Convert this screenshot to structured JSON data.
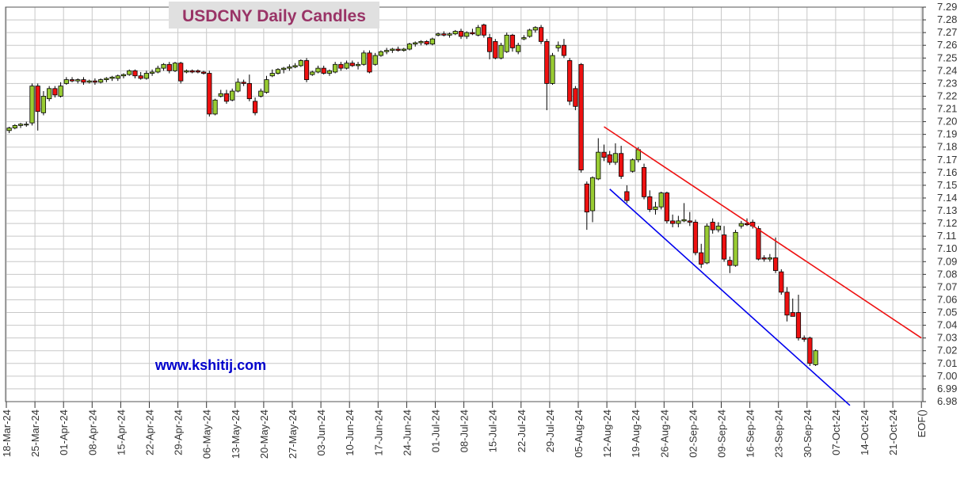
{
  "chart_data": {
    "type": "candlestick",
    "title": "USDCNY Daily Candles",
    "watermark": "www.kshitij.com",
    "ylim": [
      6.98,
      7.29
    ],
    "y_ticks": [
      6.98,
      6.99,
      7.0,
      7.01,
      7.02,
      7.03,
      7.04,
      7.05,
      7.06,
      7.07,
      7.08,
      7.09,
      7.1,
      7.11,
      7.12,
      7.13,
      7.14,
      7.15,
      7.16,
      7.17,
      7.18,
      7.19,
      7.2,
      7.21,
      7.22,
      7.23,
      7.24,
      7.25,
      7.26,
      7.27,
      7.28,
      7.29
    ],
    "x_ticks": [
      "18-Mar-24",
      "25-Mar-24",
      "01-Apr-24",
      "08-Apr-24",
      "15-Apr-24",
      "22-Apr-24",
      "29-Apr-24",
      "06-May-24",
      "13-May-24",
      "20-May-24",
      "27-May-24",
      "03-Jun-24",
      "10-Jun-24",
      "17-Jun-24",
      "24-Jun-24",
      "01-Jul-24",
      "08-Jul-24",
      "15-Jul-24",
      "22-Jul-24",
      "29-Jul-24",
      "05-Aug-24",
      "12-Aug-24",
      "19-Aug-24",
      "26-Aug-24",
      "02-Sep-24",
      "09-Sep-24",
      "16-Sep-24",
      "23-Sep-24",
      "30-Sep-24",
      "07-Oct-24",
      "14-Oct-24",
      "21-Oct-24",
      "EOF()"
    ],
    "colors": {
      "up": "#99cc33",
      "down": "#ee1111",
      "grid": "#c8c8c8",
      "title": "#993366",
      "title_bg": "#e0e0e0",
      "watermark": "#0000cc",
      "upper_trendline": "#ee1111",
      "lower_trendline": "#0000ee"
    },
    "candles": [
      {
        "date": "18-Mar-24",
        "o": 7.193,
        "h": 7.196,
        "l": 7.191,
        "c": 7.195
      },
      {
        "date": "19-Mar-24",
        "o": 7.195,
        "h": 7.198,
        "l": 7.194,
        "c": 7.197
      },
      {
        "date": "20-Mar-24",
        "o": 7.197,
        "h": 7.199,
        "l": 7.195,
        "c": 7.198
      },
      {
        "date": "21-Mar-24",
        "o": 7.198,
        "h": 7.2,
        "l": 7.196,
        "c": 7.198
      },
      {
        "date": "22-Mar-24",
        "o": 7.199,
        "h": 7.23,
        "l": 7.197,
        "c": 7.228
      },
      {
        "date": "25-Mar-24",
        "o": 7.228,
        "h": 7.23,
        "l": 7.193,
        "c": 7.208
      },
      {
        "date": "26-Mar-24",
        "o": 7.207,
        "h": 7.224,
        "l": 7.205,
        "c": 7.22
      },
      {
        "date": "27-Mar-24",
        "o": 7.218,
        "h": 7.228,
        "l": 7.216,
        "c": 7.226
      },
      {
        "date": "28-Mar-24",
        "o": 7.226,
        "h": 7.228,
        "l": 7.219,
        "c": 7.221
      },
      {
        "date": "29-Mar-24",
        "o": 7.22,
        "h": 7.231,
        "l": 7.219,
        "c": 7.228
      },
      {
        "date": "01-Apr-24",
        "o": 7.23,
        "h": 7.235,
        "l": 7.229,
        "c": 7.233
      },
      {
        "date": "02-Apr-24",
        "o": 7.233,
        "h": 7.235,
        "l": 7.231,
        "c": 7.232
      },
      {
        "date": "03-Apr-24",
        "o": 7.232,
        "h": 7.234,
        "l": 7.23,
        "c": 7.233
      },
      {
        "date": "04-Apr-24",
        "o": 7.233,
        "h": 7.235,
        "l": 7.229,
        "c": 7.231
      },
      {
        "date": "05-Apr-24",
        "o": 7.231,
        "h": 7.233,
        "l": 7.23,
        "c": 7.232
      },
      {
        "date": "08-Apr-24",
        "o": 7.232,
        "h": 7.234,
        "l": 7.229,
        "c": 7.231
      },
      {
        "date": "09-Apr-24",
        "o": 7.231,
        "h": 7.234,
        "l": 7.23,
        "c": 7.233
      },
      {
        "date": "10-Apr-24",
        "o": 7.233,
        "h": 7.235,
        "l": 7.231,
        "c": 7.234
      },
      {
        "date": "11-Apr-24",
        "o": 7.234,
        "h": 7.236,
        "l": 7.232,
        "c": 7.235
      },
      {
        "date": "12-Apr-24",
        "o": 7.234,
        "h": 7.237,
        "l": 7.232,
        "c": 7.236
      },
      {
        "date": "15-Apr-24",
        "o": 7.236,
        "h": 7.238,
        "l": 7.234,
        "c": 7.237
      },
      {
        "date": "16-Apr-24",
        "o": 7.237,
        "h": 7.241,
        "l": 7.236,
        "c": 7.24
      },
      {
        "date": "17-Apr-24",
        "o": 7.24,
        "h": 7.241,
        "l": 7.234,
        "c": 7.236
      },
      {
        "date": "18-Apr-24",
        "o": 7.236,
        "h": 7.239,
        "l": 7.233,
        "c": 7.234
      },
      {
        "date": "19-Apr-24",
        "o": 7.234,
        "h": 7.24,
        "l": 7.233,
        "c": 7.238
      },
      {
        "date": "22-Apr-24",
        "o": 7.238,
        "h": 7.241,
        "l": 7.236,
        "c": 7.239
      },
      {
        "date": "23-Apr-24",
        "o": 7.239,
        "h": 7.244,
        "l": 7.238,
        "c": 7.242
      },
      {
        "date": "24-Apr-24",
        "o": 7.242,
        "h": 7.246,
        "l": 7.24,
        "c": 7.245
      },
      {
        "date": "25-Apr-24",
        "o": 7.245,
        "h": 7.247,
        "l": 7.238,
        "c": 7.24
      },
      {
        "date": "26-Apr-24",
        "o": 7.24,
        "h": 7.247,
        "l": 7.239,
        "c": 7.246
      },
      {
        "date": "29-Apr-24",
        "o": 7.246,
        "h": 7.247,
        "l": 7.23,
        "c": 7.232
      },
      {
        "date": "30-Apr-24",
        "o": 7.239,
        "h": 7.241,
        "l": 7.238,
        "c": 7.24
      },
      {
        "date": "01-May-24",
        "o": 7.24,
        "h": 7.241,
        "l": 7.238,
        "c": 7.239
      },
      {
        "date": "02-May-24",
        "o": 7.24,
        "h": 7.241,
        "l": 7.238,
        "c": 7.239
      },
      {
        "date": "03-May-24",
        "o": 7.239,
        "h": 7.24,
        "l": 7.237,
        "c": 7.238
      },
      {
        "date": "06-May-24",
        "o": 7.238,
        "h": 7.24,
        "l": 7.204,
        "c": 7.206
      },
      {
        "date": "07-May-24",
        "o": 7.206,
        "h": 7.218,
        "l": 7.205,
        "c": 7.217
      },
      {
        "date": "08-May-24",
        "o": 7.22,
        "h": 7.225,
        "l": 7.219,
        "c": 7.222
      },
      {
        "date": "09-May-24",
        "o": 7.222,
        "h": 7.225,
        "l": 7.214,
        "c": 7.216
      },
      {
        "date": "10-May-24",
        "o": 7.217,
        "h": 7.226,
        "l": 7.216,
        "c": 7.224
      },
      {
        "date": "13-May-24",
        "o": 7.224,
        "h": 7.234,
        "l": 7.223,
        "c": 7.231
      },
      {
        "date": "14-May-24",
        "o": 7.231,
        "h": 7.233,
        "l": 7.228,
        "c": 7.23
      },
      {
        "date": "15-May-24",
        "o": 7.23,
        "h": 7.237,
        "l": 7.216,
        "c": 7.218
      },
      {
        "date": "16-May-24",
        "o": 7.216,
        "h": 7.219,
        "l": 7.205,
        "c": 7.207
      },
      {
        "date": "17-May-24",
        "o": 7.22,
        "h": 7.226,
        "l": 7.219,
        "c": 7.224
      },
      {
        "date": "20-May-24",
        "o": 7.223,
        "h": 7.236,
        "l": 7.222,
        "c": 7.233
      },
      {
        "date": "21-May-24",
        "o": 7.236,
        "h": 7.241,
        "l": 7.235,
        "c": 7.238
      },
      {
        "date": "22-May-24",
        "o": 7.238,
        "h": 7.242,
        "l": 7.237,
        "c": 7.241
      },
      {
        "date": "23-May-24",
        "o": 7.241,
        "h": 7.243,
        "l": 7.238,
        "c": 7.242
      },
      {
        "date": "24-May-24",
        "o": 7.242,
        "h": 7.245,
        "l": 7.24,
        "c": 7.243
      },
      {
        "date": "27-May-24",
        "o": 7.243,
        "h": 7.246,
        "l": 7.242,
        "c": 7.244
      },
      {
        "date": "28-May-24",
        "o": 7.244,
        "h": 7.249,
        "l": 7.243,
        "c": 7.248
      },
      {
        "date": "29-May-24",
        "o": 7.248,
        "h": 7.25,
        "l": 7.231,
        "c": 7.233
      },
      {
        "date": "30-May-24",
        "o": 7.237,
        "h": 7.24,
        "l": 7.236,
        "c": 7.239
      },
      {
        "date": "31-May-24",
        "o": 7.239,
        "h": 7.244,
        "l": 7.238,
        "c": 7.242
      },
      {
        "date": "03-Jun-24",
        "o": 7.242,
        "h": 7.244,
        "l": 7.237,
        "c": 7.238
      },
      {
        "date": "04-Jun-24",
        "o": 7.238,
        "h": 7.241,
        "l": 7.236,
        "c": 7.24
      },
      {
        "date": "05-Jun-24",
        "o": 7.239,
        "h": 7.247,
        "l": 7.238,
        "c": 7.245
      },
      {
        "date": "06-Jun-24",
        "o": 7.245,
        "h": 7.247,
        "l": 7.24,
        "c": 7.242
      },
      {
        "date": "07-Jun-24",
        "o": 7.242,
        "h": 7.248,
        "l": 7.241,
        "c": 7.246
      },
      {
        "date": "10-Jun-24",
        "o": 7.246,
        "h": 7.248,
        "l": 7.243,
        "c": 7.244
      },
      {
        "date": "11-Jun-24",
        "o": 7.244,
        "h": 7.247,
        "l": 7.241,
        "c": 7.245
      },
      {
        "date": "12-Jun-24",
        "o": 7.245,
        "h": 7.256,
        "l": 7.244,
        "c": 7.254
      },
      {
        "date": "13-Jun-24",
        "o": 7.254,
        "h": 7.256,
        "l": 7.238,
        "c": 7.239
      },
      {
        "date": "14-Jun-24",
        "o": 7.245,
        "h": 7.254,
        "l": 7.244,
        "c": 7.252
      },
      {
        "date": "17-Jun-24",
        "o": 7.252,
        "h": 7.256,
        "l": 7.251,
        "c": 7.255
      },
      {
        "date": "18-Jun-24",
        "o": 7.255,
        "h": 7.258,
        "l": 7.253,
        "c": 7.256
      },
      {
        "date": "19-Jun-24",
        "o": 7.256,
        "h": 7.258,
        "l": 7.254,
        "c": 7.257
      },
      {
        "date": "20-Jun-24",
        "o": 7.257,
        "h": 7.259,
        "l": 7.255,
        "c": 7.256
      },
      {
        "date": "21-Jun-24",
        "o": 7.256,
        "h": 7.258,
        "l": 7.255,
        "c": 7.257
      },
      {
        "date": "24-Jun-24",
        "o": 7.257,
        "h": 7.262,
        "l": 7.256,
        "c": 7.261
      },
      {
        "date": "25-Jun-24",
        "o": 7.261,
        "h": 7.263,
        "l": 7.259,
        "c": 7.262
      },
      {
        "date": "26-Jun-24",
        "o": 7.262,
        "h": 7.264,
        "l": 7.26,
        "c": 7.263
      },
      {
        "date": "27-Jun-24",
        "o": 7.263,
        "h": 7.264,
        "l": 7.26,
        "c": 7.261
      },
      {
        "date": "28-Jun-24",
        "o": 7.261,
        "h": 7.266,
        "l": 7.26,
        "c": 7.265
      },
      {
        "date": "01-Jul-24",
        "o": 7.268,
        "h": 7.27,
        "l": 7.267,
        "c": 7.269
      },
      {
        "date": "02-Jul-24",
        "o": 7.269,
        "h": 7.271,
        "l": 7.267,
        "c": 7.268
      },
      {
        "date": "03-Jul-24",
        "o": 7.268,
        "h": 7.27,
        "l": 7.266,
        "c": 7.269
      },
      {
        "date": "04-Jul-24",
        "o": 7.269,
        "h": 7.272,
        "l": 7.268,
        "c": 7.271
      },
      {
        "date": "05-Jul-24",
        "o": 7.271,
        "h": 7.273,
        "l": 7.265,
        "c": 7.267
      },
      {
        "date": "08-Jul-24",
        "o": 7.267,
        "h": 7.271,
        "l": 7.265,
        "c": 7.27
      },
      {
        "date": "09-Jul-24",
        "o": 7.27,
        "h": 7.273,
        "l": 7.268,
        "c": 7.269
      },
      {
        "date": "10-Jul-24",
        "o": 7.268,
        "h": 7.276,
        "l": 7.267,
        "c": 7.274
      },
      {
        "date": "11-Jul-24",
        "o": 7.276,
        "h": 7.277,
        "l": 7.266,
        "c": 7.268
      },
      {
        "date": "12-Jul-24",
        "o": 7.266,
        "h": 7.269,
        "l": 7.249,
        "c": 7.255
      },
      {
        "date": "15-Jul-24",
        "o": 7.263,
        "h": 7.265,
        "l": 7.249,
        "c": 7.25
      },
      {
        "date": "16-Jul-24",
        "o": 7.25,
        "h": 7.262,
        "l": 7.249,
        "c": 7.26
      },
      {
        "date": "17-Jul-24",
        "o": 7.255,
        "h": 7.27,
        "l": 7.254,
        "c": 7.268
      },
      {
        "date": "18-Jul-24",
        "o": 7.268,
        "h": 7.269,
        "l": 7.255,
        "c": 7.258
      },
      {
        "date": "19-Jul-24",
        "o": 7.255,
        "h": 7.262,
        "l": 7.253,
        "c": 7.26
      },
      {
        "date": "22-Jul-24",
        "o": 7.265,
        "h": 7.268,
        "l": 7.264,
        "c": 7.266
      },
      {
        "date": "23-Jul-24",
        "o": 7.267,
        "h": 7.273,
        "l": 7.266,
        "c": 7.272
      },
      {
        "date": "24-Jul-24",
        "o": 7.272,
        "h": 7.275,
        "l": 7.27,
        "c": 7.274
      },
      {
        "date": "25-Jul-24",
        "o": 7.274,
        "h": 7.276,
        "l": 7.261,
        "c": 7.263
      },
      {
        "date": "26-Jul-24",
        "o": 7.263,
        "h": 7.265,
        "l": 7.209,
        "c": 7.23
      },
      {
        "date": "29-Jul-24",
        "o": 7.23,
        "h": 7.254,
        "l": 7.229,
        "c": 7.252
      },
      {
        "date": "30-Jul-24",
        "o": 7.258,
        "h": 7.263,
        "l": 7.255,
        "c": 7.26
      },
      {
        "date": "31-Jul-24",
        "o": 7.26,
        "h": 7.265,
        "l": 7.25,
        "c": 7.252
      },
      {
        "date": "01-Aug-24",
        "o": 7.248,
        "h": 7.25,
        "l": 7.213,
        "c": 7.216
      },
      {
        "date": "02-Aug-24",
        "o": 7.226,
        "h": 7.228,
        "l": 7.209,
        "c": 7.212
      },
      {
        "date": "05-Aug-24",
        "o": 7.245,
        "h": 7.246,
        "l": 7.16,
        "c": 7.162
      },
      {
        "date": "06-Aug-24",
        "o": 7.151,
        "h": 7.153,
        "l": 7.115,
        "c": 7.129
      },
      {
        "date": "07-Aug-24",
        "o": 7.13,
        "h": 7.157,
        "l": 7.121,
        "c": 7.156
      },
      {
        "date": "08-Aug-24",
        "o": 7.155,
        "h": 7.187,
        "l": 7.154,
        "c": 7.176
      },
      {
        "date": "09-Aug-24",
        "o": 7.176,
        "h": 7.182,
        "l": 7.169,
        "c": 7.172
      },
      {
        "date": "12-Aug-24",
        "o": 7.174,
        "h": 7.177,
        "l": 7.166,
        "c": 7.168
      },
      {
        "date": "13-Aug-24",
        "o": 7.168,
        "h": 7.183,
        "l": 7.166,
        "c": 7.175
      },
      {
        "date": "14-Aug-24",
        "o": 7.175,
        "h": 7.181,
        "l": 7.155,
        "c": 7.157
      },
      {
        "date": "15-Aug-24",
        "o": 7.145,
        "h": 7.15,
        "l": 7.136,
        "c": 7.138
      },
      {
        "date": "16-Aug-24",
        "o": 7.161,
        "h": 7.171,
        "l": 7.16,
        "c": 7.17
      },
      {
        "date": "19-Aug-24",
        "o": 7.17,
        "h": 7.18,
        "l": 7.168,
        "c": 7.178
      },
      {
        "date": "20-Aug-24",
        "o": 7.164,
        "h": 7.167,
        "l": 7.139,
        "c": 7.141
      },
      {
        "date": "21-Aug-24",
        "o": 7.141,
        "h": 7.146,
        "l": 7.129,
        "c": 7.131
      },
      {
        "date": "22-Aug-24",
        "o": 7.131,
        "h": 7.137,
        "l": 7.127,
        "c": 7.133
      },
      {
        "date": "23-Aug-24",
        "o": 7.133,
        "h": 7.145,
        "l": 7.131,
        "c": 7.144
      },
      {
        "date": "26-Aug-24",
        "o": 7.144,
        "h": 7.145,
        "l": 7.12,
        "c": 7.122
      },
      {
        "date": "27-Aug-24",
        "o": 7.122,
        "h": 7.127,
        "l": 7.117,
        "c": 7.12
      },
      {
        "date": "28-Aug-24",
        "o": 7.12,
        "h": 7.126,
        "l": 7.117,
        "c": 7.122
      },
      {
        "date": "29-Aug-24",
        "o": 7.122,
        "h": 7.136,
        "l": 7.121,
        "c": 7.123
      },
      {
        "date": "30-Aug-24",
        "o": 7.122,
        "h": 7.129,
        "l": 7.118,
        "c": 7.121
      },
      {
        "date": "02-Sep-24",
        "o": 7.121,
        "h": 7.123,
        "l": 7.095,
        "c": 7.097
      },
      {
        "date": "03-Sep-24",
        "o": 7.097,
        "h": 7.104,
        "l": 7.085,
        "c": 7.088
      },
      {
        "date": "04-Sep-24",
        "o": 7.089,
        "h": 7.12,
        "l": 7.088,
        "c": 7.118
      },
      {
        "date": "05-Sep-24",
        "o": 7.121,
        "h": 7.124,
        "l": 7.112,
        "c": 7.115
      },
      {
        "date": "06-Sep-24",
        "o": 7.115,
        "h": 7.121,
        "l": 7.113,
        "c": 7.118
      },
      {
        "date": "09-Sep-24",
        "o": 7.111,
        "h": 7.118,
        "l": 7.09,
        "c": 7.092
      },
      {
        "date": "10-Sep-24",
        "o": 7.091,
        "h": 7.094,
        "l": 7.081,
        "c": 7.087
      },
      {
        "date": "11-Sep-24",
        "o": 7.087,
        "h": 7.115,
        "l": 7.086,
        "c": 7.113
      },
      {
        "date": "12-Sep-24",
        "o": 7.118,
        "h": 7.122,
        "l": 7.116,
        "c": 7.12
      },
      {
        "date": "13-Sep-24",
        "o": 7.12,
        "h": 7.124,
        "l": 7.118,
        "c": 7.119
      },
      {
        "date": "16-Sep-24",
        "o": 7.121,
        "h": 7.123,
        "l": 7.116,
        "c": 7.118
      },
      {
        "date": "17-Sep-24",
        "o": 7.116,
        "h": 7.118,
        "l": 7.091,
        "c": 7.092
      },
      {
        "date": "18-Sep-24",
        "o": 7.093,
        "h": 7.095,
        "l": 7.09,
        "c": 7.092
      },
      {
        "date": "19-Sep-24",
        "o": 7.092,
        "h": 7.096,
        "l": 7.09,
        "c": 7.093
      },
      {
        "date": "20-Sep-24",
        "o": 7.093,
        "h": 7.109,
        "l": 7.081,
        "c": 7.083
      },
      {
        "date": "23-Sep-24",
        "o": 7.082,
        "h": 7.084,
        "l": 7.064,
        "c": 7.066
      },
      {
        "date": "24-Sep-24",
        "o": 7.066,
        "h": 7.07,
        "l": 7.043,
        "c": 7.048
      },
      {
        "date": "25-Sep-24",
        "o": 7.05,
        "h": 7.061,
        "l": 7.047,
        "c": 7.047
      },
      {
        "date": "26-Sep-24",
        "o": 7.05,
        "h": 7.064,
        "l": 7.028,
        "c": 7.03
      },
      {
        "date": "27-Sep-24",
        "o": 7.03,
        "h": 7.032,
        "l": 7.027,
        "c": 7.029
      },
      {
        "date": "30-Sep-24",
        "o": 7.03,
        "h": 7.031,
        "l": 7.008,
        "c": 7.01
      },
      {
        "date": "01-Oct-24",
        "o": 7.009,
        "h": 7.021,
        "l": 7.008,
        "c": 7.02
      }
    ],
    "trendlines": [
      {
        "name": "upper",
        "color": "#ee1111",
        "from": {
          "date": "09-Aug-24",
          "value": 7.196
        },
        "to": {
          "date": "EOF()",
          "value": 7.03
        }
      },
      {
        "name": "lower",
        "color": "#0000ee",
        "from": {
          "date": "12-Aug-24",
          "value": 7.147
        },
        "to": {
          "date": "09-Oct-24",
          "value": 6.977
        }
      }
    ]
  }
}
